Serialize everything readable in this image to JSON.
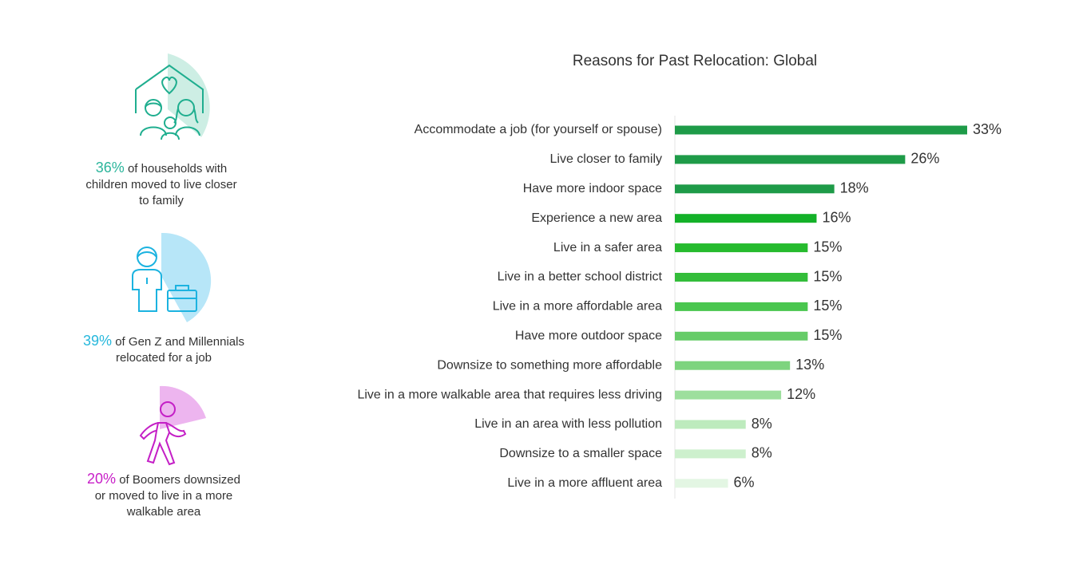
{
  "stats": [
    {
      "pct": "36%",
      "text_line1": "of households with",
      "text_line2": "children moved to live closer",
      "text_line3": "to family",
      "icon": "family-house-icon",
      "color": "#2bb59b"
    },
    {
      "pct": "39%",
      "text_line1": "of Gen Z and Millennials",
      "text_line2": "relocated for a job",
      "text_line3": "",
      "icon": "worker-briefcase-icon",
      "color": "#27b8dc"
    },
    {
      "pct": "20%",
      "text_line1": "of Boomers downsized",
      "text_line2": "or moved to live in a more",
      "text_line3": "walkable area",
      "icon": "walking-person-icon",
      "color": "#c81fc8"
    }
  ],
  "chart_data": {
    "type": "bar",
    "orientation": "horizontal",
    "title": "Reasons for Past Relocation: Global",
    "categories": [
      "Accommodate a job (for yourself or spouse)",
      "Live closer to family",
      "Have more indoor space",
      "Experience a new area",
      "Live in a safer area",
      "Live in a better school district",
      "Live in a more affordable area",
      "Have more outdoor space",
      "Downsize to something more affordable",
      "Live in a more walkable area that requires less driving",
      "Live in an area with less pollution",
      "Downsize to a smaller space",
      "Live in a more affluent area"
    ],
    "values": [
      33,
      26,
      18,
      16,
      15,
      15,
      15,
      15,
      13,
      12,
      8,
      8,
      6
    ],
    "value_labels": [
      "33%",
      "26%",
      "18%",
      "16%",
      "15%",
      "15%",
      "15%",
      "15%",
      "13%",
      "12%",
      "8%",
      "8%",
      "6%"
    ],
    "colors": [
      "#1e9b48",
      "#1e9b48",
      "#1e9b48",
      "#13b128",
      "#26bb2e",
      "#33bd3a",
      "#4ac64f",
      "#66cc68",
      "#7dd47e",
      "#9ddf9d",
      "#bdebbd",
      "#cdf0cd",
      "#e3f6e3"
    ],
    "xlim": [
      0,
      33
    ],
    "grid": false
  }
}
